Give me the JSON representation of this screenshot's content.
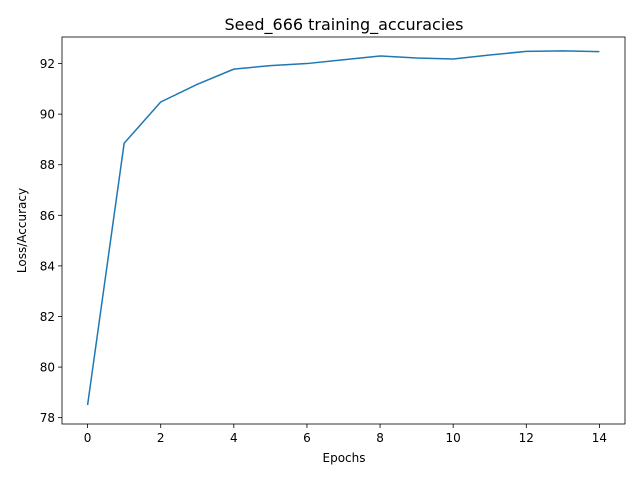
{
  "chart_data": {
    "type": "line",
    "title": "Seed_666 training_accuracies",
    "xlabel": "Epochs",
    "ylabel": "Loss/Accuracy",
    "xlim": [
      -0.7,
      14.7
    ],
    "ylim": [
      77.75,
      93.05
    ],
    "xticks": [
      0,
      2,
      4,
      6,
      8,
      10,
      12,
      14
    ],
    "yticks": [
      78,
      80,
      82,
      84,
      86,
      88,
      90,
      92
    ],
    "grid": false,
    "series": [
      {
        "color": "#1f77b4",
        "x": [
          0,
          1,
          2,
          3,
          4,
          5,
          6,
          7,
          8,
          9,
          10,
          11,
          12,
          13,
          14
        ],
        "y": [
          78.5,
          88.85,
          90.48,
          91.18,
          91.78,
          91.92,
          92.0,
          92.15,
          92.3,
          92.22,
          92.18,
          92.34,
          92.48,
          92.5,
          92.47
        ]
      }
    ]
  }
}
